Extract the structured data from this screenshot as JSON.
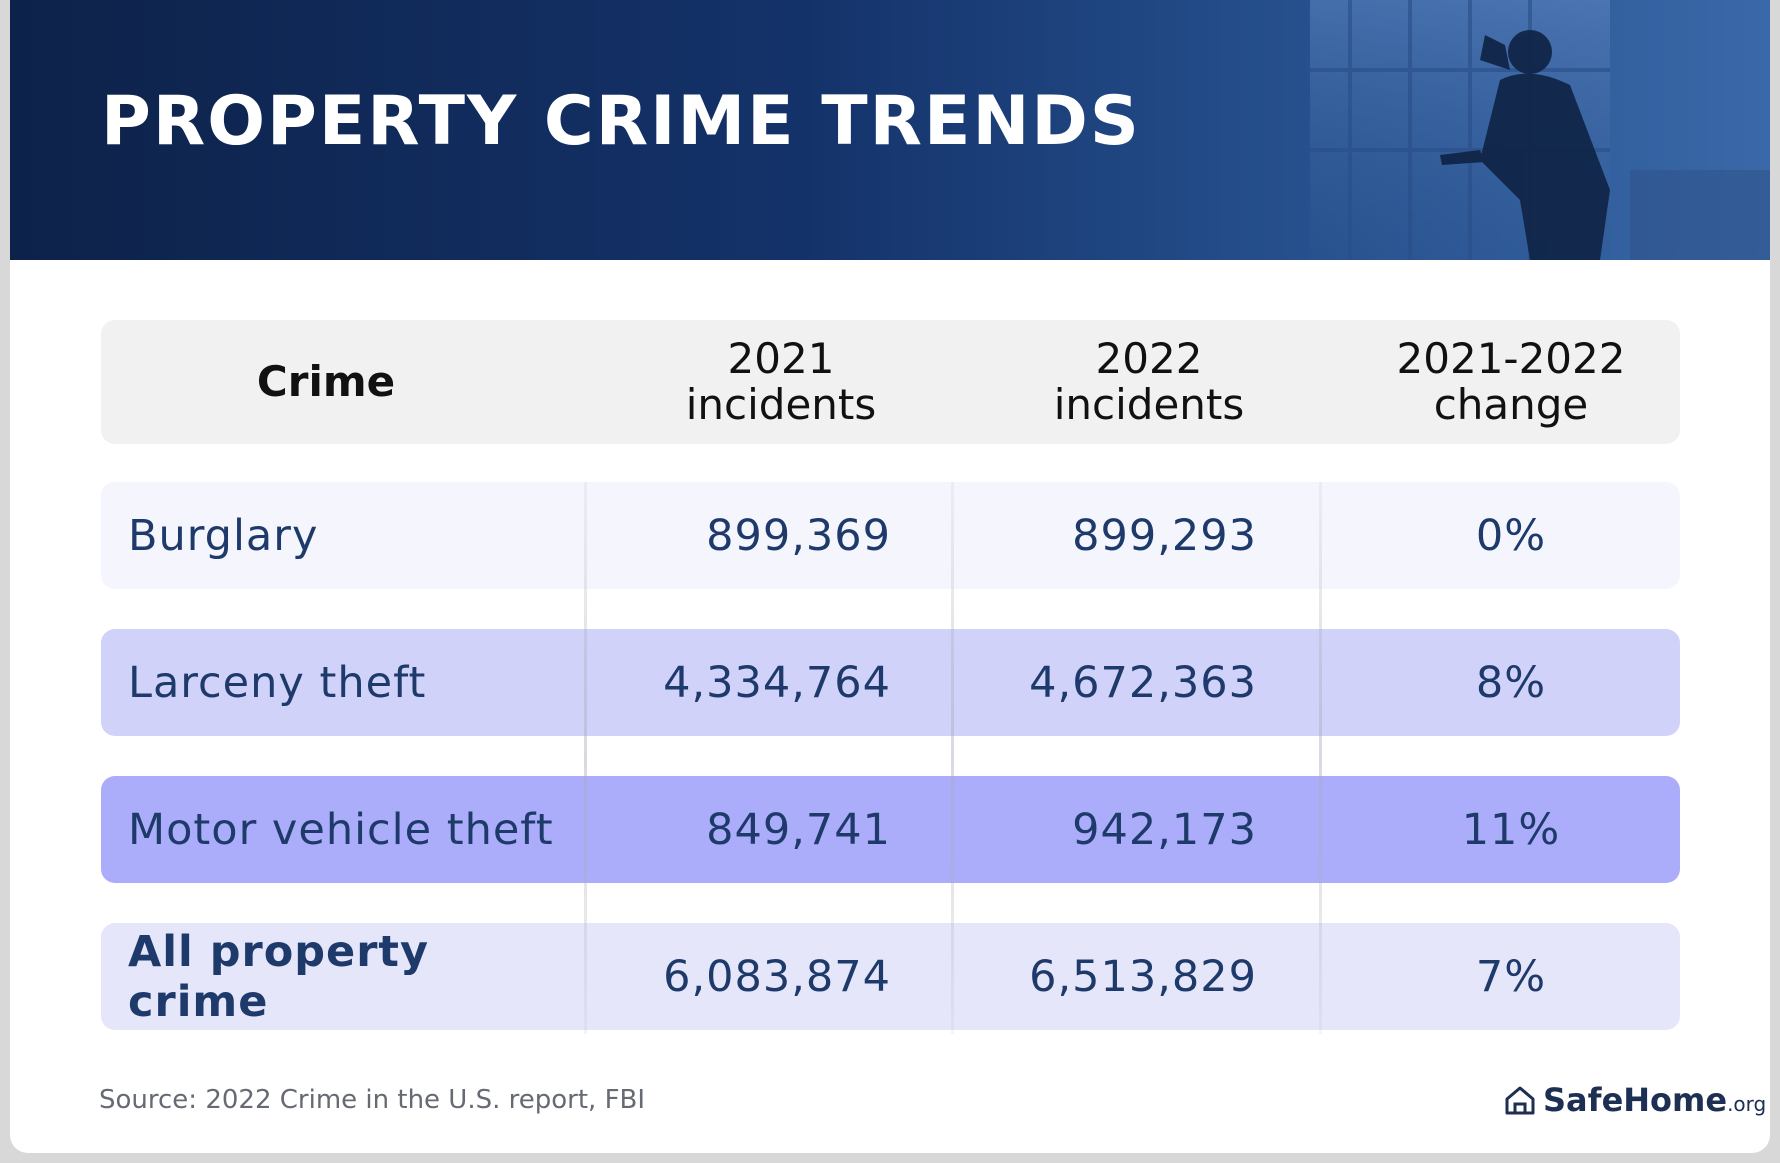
{
  "header": {
    "title": "PROPERTY CRIME TRENDS"
  },
  "chart_data": {
    "type": "table",
    "title": "PROPERTY CRIME TRENDS",
    "columns": [
      "Crime",
      "2021 incidents",
      "2022 incidents",
      "2021-2022 change"
    ],
    "rows": [
      {
        "crime": "Burglary",
        "y2021": "899,369",
        "y2022": "899,293",
        "change": "0%",
        "color": "#f5f6fd",
        "bold": false
      },
      {
        "crime": "Larceny theft",
        "y2021": "4,334,764",
        "y2022": "4,672,363",
        "change": "8%",
        "color": "#d0d2fa",
        "bold": false
      },
      {
        "crime": "Motor vehicle theft",
        "y2021": "849,741",
        "y2022": "942,173",
        "change": "11%",
        "color": "#abadfa",
        "bold": false
      },
      {
        "crime": "All property crime",
        "y2021": "6,083,874",
        "y2022": "6,513,829",
        "change": "7%",
        "color": "#e6e6fb",
        "bold": true
      }
    ]
  },
  "footer": {
    "source": "Source: 2022 Crime in the U.S. report, FBI",
    "logo_name": "SafeHome",
    "logo_suffix": ".org"
  },
  "colors": {
    "banner_dark": "#0d2249",
    "banner_light": "#3a68a8",
    "text_blue": "#1e3a6a",
    "header_bg": "#f1f1f1"
  },
  "icons": {
    "logo": "house-icon",
    "banner_image": "burglar-silhouette-icon"
  }
}
